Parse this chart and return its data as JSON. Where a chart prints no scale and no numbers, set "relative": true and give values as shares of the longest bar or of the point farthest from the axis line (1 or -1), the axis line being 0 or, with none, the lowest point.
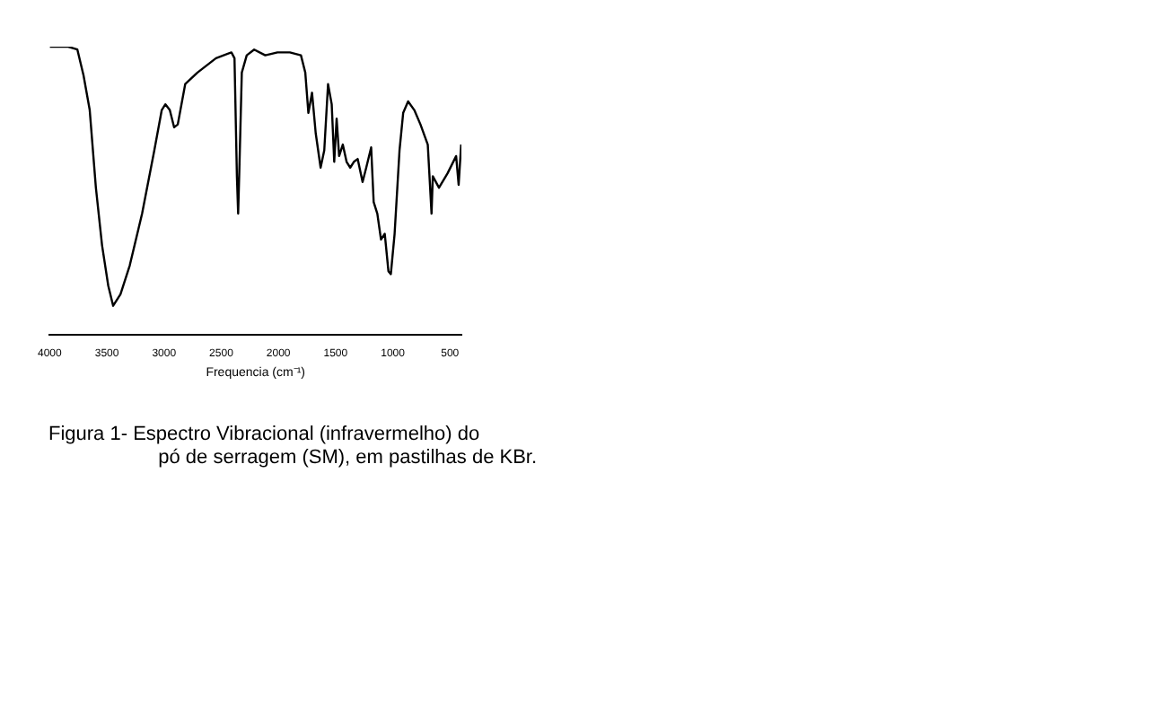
{
  "chart_data": {
    "type": "line",
    "relative": true,
    "xlabel": "Frequencia (cm⁻¹)",
    "color": "#000000",
    "xlim": [
      4000,
      400
    ],
    "xticks": [
      4000,
      3500,
      3000,
      2500,
      2000,
      1500,
      1000,
      500
    ],
    "grid": false,
    "legend": false,
    "marker": "none",
    "x": [
      4000,
      3838,
      3758,
      3704,
      3650,
      3596,
      3542,
      3488,
      3445,
      3381,
      3300,
      3192,
      3085,
      3020,
      2988,
      2950,
      2912,
      2880,
      2815,
      2708,
      2546,
      2411,
      2384,
      2363,
      2352,
      2341,
      2320,
      2277,
      2212,
      2115,
      2008,
      1900,
      1803,
      1765,
      1738,
      1706,
      1674,
      1631,
      1599,
      1566,
      1534,
      1512,
      1491,
      1469,
      1437,
      1404,
      1372,
      1340,
      1307,
      1264,
      1232,
      1189,
      1167,
      1135,
      1103,
      1070,
      1038,
      1017,
      984,
      941,
      909,
      866,
      812,
      758,
      694,
      661,
      650,
      596,
      521,
      446,
      424,
      402
    ],
    "values": [
      1.0,
      1.0,
      0.99,
      0.9,
      0.78,
      0.51,
      0.31,
      0.17,
      0.1,
      0.14,
      0.24,
      0.42,
      0.64,
      0.78,
      0.8,
      0.78,
      0.72,
      0.73,
      0.87,
      0.91,
      0.96,
      0.98,
      0.96,
      0.55,
      0.42,
      0.58,
      0.91,
      0.97,
      0.99,
      0.97,
      0.98,
      0.98,
      0.97,
      0.91,
      0.77,
      0.84,
      0.7,
      0.58,
      0.64,
      0.87,
      0.8,
      0.6,
      0.75,
      0.62,
      0.66,
      0.6,
      0.58,
      0.6,
      0.61,
      0.53,
      0.58,
      0.65,
      0.46,
      0.42,
      0.33,
      0.35,
      0.22,
      0.21,
      0.35,
      0.64,
      0.77,
      0.81,
      0.78,
      0.73,
      0.66,
      0.42,
      0.55,
      0.51,
      0.56,
      0.62,
      0.52,
      0.66
    ],
    "annotations": [
      "Figura 1- Espectro Vibracional (infravermelho) do\npó de serragem (SM), em pastilhas de KBr."
    ]
  }
}
